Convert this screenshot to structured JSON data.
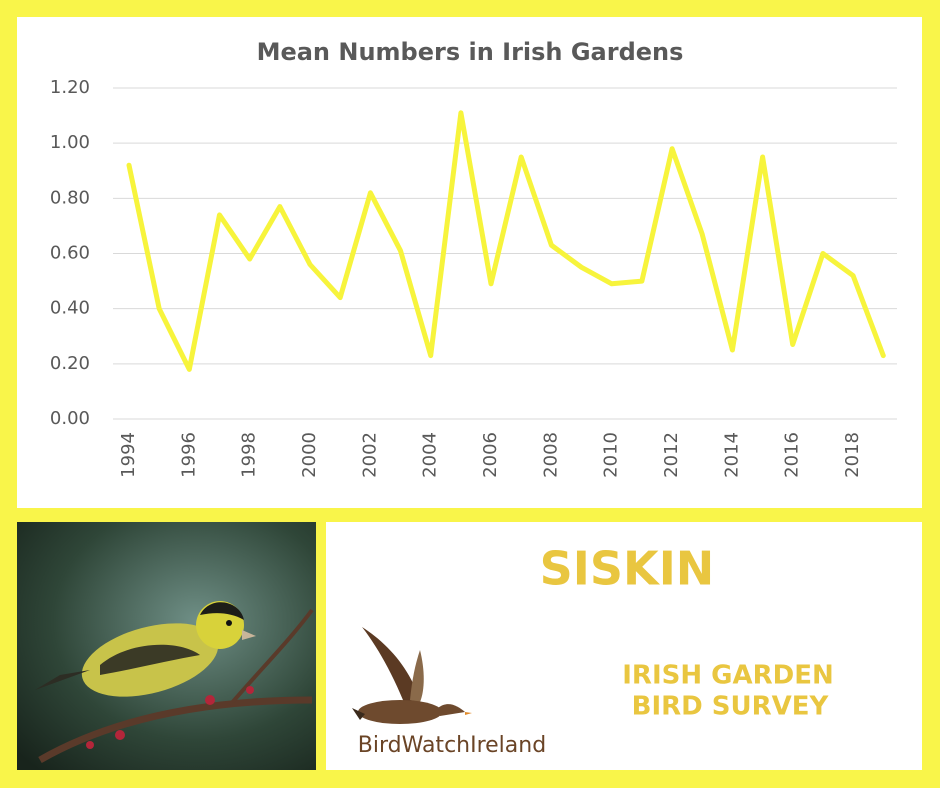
{
  "chart_data": {
    "type": "line",
    "title": "Mean Numbers in Irish Gardens",
    "categories": [
      "1994",
      null,
      "1996",
      null,
      "1998",
      null,
      "2000",
      null,
      "2002",
      null,
      "2004",
      null,
      "2006",
      null,
      "2008",
      null,
      "2010",
      null,
      "2012",
      null,
      "2014",
      null,
      "2016",
      null,
      "2018",
      null
    ],
    "values": [
      0.92,
      0.4,
      0.18,
      0.74,
      0.58,
      0.77,
      0.56,
      0.44,
      0.82,
      0.61,
      0.23,
      1.11,
      0.49,
      0.95,
      0.63,
      0.55,
      0.49,
      0.5,
      0.98,
      0.67,
      0.25,
      0.95,
      0.27,
      0.6,
      0.52,
      0.23
    ],
    "color": "#f7f43c",
    "ylim": [
      0,
      1.2
    ],
    "yticks": [
      {
        "value": 0,
        "label": "0.00"
      },
      {
        "value": 0.2,
        "label": "0.20"
      },
      {
        "value": 0.4,
        "label": "0.40"
      },
      {
        "value": 0.6,
        "label": "0.60"
      },
      {
        "value": 0.8,
        "label": "0.80"
      },
      {
        "value": 1,
        "label": "1.00"
      },
      {
        "value": 1.2,
        "label": "1.20"
      }
    ],
    "grid": true
  },
  "panel": {
    "species": "SISKIN",
    "survey": [
      "IRISH GARDEN",
      "BIRD SURVEY"
    ],
    "logo": "BirdWatchIreland"
  }
}
